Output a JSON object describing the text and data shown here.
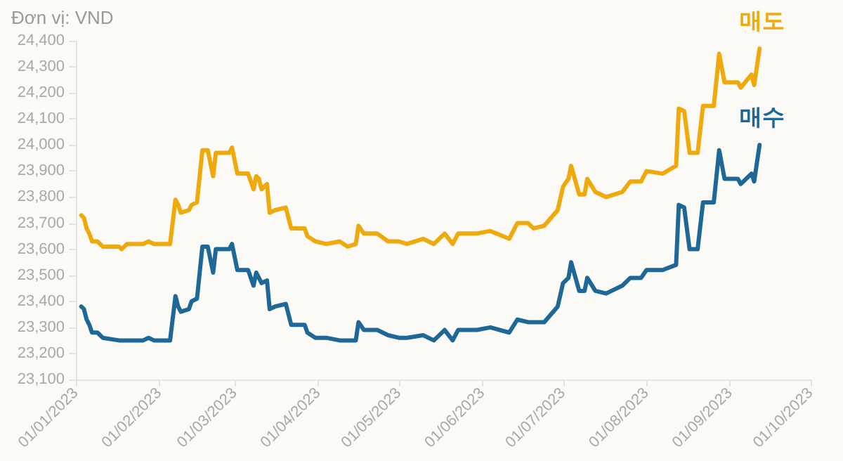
{
  "chart_data": {
    "type": "line",
    "ylabel": "Đơn vị: VND",
    "marker": "none",
    "line_style": "solid",
    "xlim": [
      "2023-01-01",
      "2023-10-01"
    ],
    "xticks": [
      {
        "value": "2023-01-01",
        "label": "01/01/2023"
      },
      {
        "value": "2023-02-01",
        "label": "01/02/2023"
      },
      {
        "value": "2023-03-01",
        "label": "01/03/2023"
      },
      {
        "value": "2023-04-01",
        "label": "01/04/2023"
      },
      {
        "value": "2023-05-01",
        "label": "01/05/2023"
      },
      {
        "value": "2023-06-01",
        "label": "01/06/2023"
      },
      {
        "value": "2023-07-01",
        "label": "01/07/2023"
      },
      {
        "value": "2023-08-01",
        "label": "01/08/2023"
      },
      {
        "value": "2023-09-01",
        "label": "01/09/2023"
      },
      {
        "value": "2023-10-01",
        "label": "01/10/2023"
      }
    ],
    "ylim": [
      23100,
      24400
    ],
    "yticks": [
      {
        "value": 23100,
        "label": "23,100"
      },
      {
        "value": 23200,
        "label": "23,200"
      },
      {
        "value": 23300,
        "label": "23,300"
      },
      {
        "value": 23400,
        "label": "23,400"
      },
      {
        "value": 23500,
        "label": "23,500"
      },
      {
        "value": 23600,
        "label": "23,600"
      },
      {
        "value": 23700,
        "label": "23,700"
      },
      {
        "value": 23800,
        "label": "23,800"
      },
      {
        "value": 23900,
        "label": "23,900"
      },
      {
        "value": 24000,
        "label": "24,000"
      },
      {
        "value": 24100,
        "label": "24,100"
      },
      {
        "value": 24200,
        "label": "24,200"
      },
      {
        "value": 24300,
        "label": "24,300"
      },
      {
        "value": 24400,
        "label": "24,400"
      }
    ],
    "x": [
      "2023-01-03",
      "2023-01-04",
      "2023-01-05",
      "2023-01-06",
      "2023-01-07",
      "2023-01-09",
      "2023-01-11",
      "2023-01-17",
      "2023-01-18",
      "2023-01-20",
      "2023-01-26",
      "2023-01-28",
      "2023-01-30",
      "2023-02-05",
      "2023-02-07",
      "2023-02-08",
      "2023-02-09",
      "2023-02-12",
      "2023-02-13",
      "2023-02-15",
      "2023-02-17",
      "2023-02-19",
      "2023-02-21",
      "2023-02-22",
      "2023-02-27",
      "2023-02-28",
      "2023-03-02",
      "2023-03-06",
      "2023-03-08",
      "2023-03-09",
      "2023-03-10",
      "2023-03-11",
      "2023-03-13",
      "2023-03-14",
      "2023-03-16",
      "2023-03-20",
      "2023-03-22",
      "2023-03-27",
      "2023-03-28",
      "2023-03-31",
      "2023-04-04",
      "2023-04-09",
      "2023-04-12",
      "2023-04-15",
      "2023-04-16",
      "2023-04-18",
      "2023-04-23",
      "2023-04-27",
      "2023-05-01",
      "2023-05-04",
      "2023-05-10",
      "2023-05-14",
      "2023-05-18",
      "2023-05-21",
      "2023-05-23",
      "2023-05-30",
      "2023-06-04",
      "2023-06-11",
      "2023-06-14",
      "2023-06-18",
      "2023-06-20",
      "2023-06-24",
      "2023-06-29",
      "2023-07-01",
      "2023-07-03",
      "2023-07-04",
      "2023-07-07",
      "2023-07-09",
      "2023-07-10",
      "2023-07-13",
      "2023-07-17",
      "2023-07-23",
      "2023-07-26",
      "2023-07-30",
      "2023-08-01",
      "2023-08-07",
      "2023-08-12",
      "2023-08-13",
      "2023-08-15",
      "2023-08-17",
      "2023-08-20",
      "2023-08-22",
      "2023-08-26",
      "2023-08-28",
      "2023-08-30",
      "2023-09-04",
      "2023-09-05",
      "2023-09-09",
      "2023-09-10",
      "2023-09-12"
    ],
    "series": [
      {
        "name": "매도",
        "color": "#f0a90a",
        "values": [
          23730,
          23720,
          23680,
          23660,
          23630,
          23630,
          23610,
          23610,
          23600,
          23620,
          23620,
          23630,
          23620,
          23620,
          23790,
          23770,
          23740,
          23750,
          23770,
          23780,
          23980,
          23980,
          23880,
          23970,
          23970,
          23990,
          23890,
          23890,
          23830,
          23880,
          23870,
          23830,
          23850,
          23740,
          23750,
          23760,
          23680,
          23680,
          23650,
          23630,
          23620,
          23630,
          23610,
          23620,
          23690,
          23660,
          23660,
          23630,
          23630,
          23620,
          23640,
          23620,
          23660,
          23620,
          23660,
          23660,
          23670,
          23640,
          23700,
          23700,
          23680,
          23690,
          23750,
          23840,
          23870,
          23920,
          23810,
          23810,
          23870,
          23820,
          23800,
          23820,
          23860,
          23860,
          23900,
          23890,
          23920,
          24140,
          24130,
          23970,
          23970,
          24150,
          24150,
          24350,
          24240,
          24240,
          24220,
          24270,
          24230,
          24370
        ]
      },
      {
        "name": "매수",
        "color": "#1d6896",
        "values": [
          23380,
          23370,
          23330,
          23310,
          23280,
          23280,
          23260,
          23250,
          23250,
          23250,
          23250,
          23260,
          23250,
          23250,
          23420,
          23380,
          23360,
          23370,
          23400,
          23410,
          23610,
          23610,
          23510,
          23600,
          23600,
          23620,
          23520,
          23520,
          23460,
          23510,
          23490,
          23470,
          23480,
          23370,
          23380,
          23390,
          23310,
          23310,
          23280,
          23260,
          23260,
          23250,
          23250,
          23250,
          23320,
          23290,
          23290,
          23270,
          23260,
          23260,
          23270,
          23250,
          23290,
          23250,
          23290,
          23290,
          23300,
          23280,
          23330,
          23320,
          23320,
          23320,
          23380,
          23470,
          23490,
          23550,
          23440,
          23440,
          23490,
          23440,
          23430,
          23460,
          23490,
          23490,
          23520,
          23520,
          23540,
          23770,
          23760,
          23600,
          23600,
          23780,
          23780,
          23980,
          23870,
          23870,
          23850,
          23890,
          23860,
          24000
        ]
      }
    ]
  }
}
